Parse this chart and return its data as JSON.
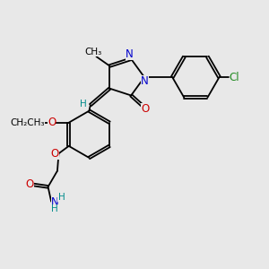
{
  "background_color": "#e8e8e8",
  "color_N": "#0000cc",
  "color_O": "#cc0000",
  "color_Cl": "#228b22",
  "color_H": "#008b8b",
  "color_C": "#000000",
  "figsize": [
    3.0,
    3.0
  ],
  "dpi": 100,
  "xlim": [
    0,
    10
  ],
  "ylim": [
    0,
    10
  ]
}
